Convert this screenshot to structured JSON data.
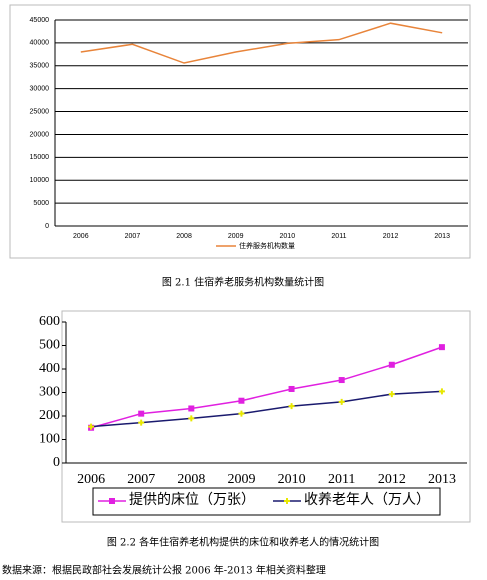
{
  "chart_data": [
    {
      "type": "line",
      "categories": [
        "2006",
        "2007",
        "2008",
        "2009",
        "2010",
        "2011",
        "2012",
        "2013"
      ],
      "series": [
        {
          "name": "住养服务机构数量",
          "color": "#e8843a",
          "values": [
            38000,
            39700,
            35600,
            38000,
            39900,
            40700,
            44300,
            42200
          ]
        }
      ],
      "ylim": [
        0,
        45000
      ],
      "yticks": [
        0,
        5000,
        10000,
        15000,
        20000,
        25000,
        30000,
        35000,
        40000,
        45000
      ],
      "grid": true,
      "legend": "bottom"
    },
    {
      "type": "line",
      "categories": [
        "2006",
        "2007",
        "2008",
        "2009",
        "2010",
        "2011",
        "2012",
        "2013"
      ],
      "series": [
        {
          "name": "提供的床位（万张）",
          "color": "#e020e0",
          "marker_color": "#e020e0",
          "marker": "square",
          "values": [
            150,
            210,
            232,
            265,
            315,
            353,
            418,
            493
          ]
        },
        {
          "name": "收养老年人（万人）",
          "color": "#1a1a6e",
          "marker_color": "#e8e800",
          "marker": "cross",
          "values": [
            155,
            172,
            190,
            210,
            242,
            260,
            293,
            305
          ]
        }
      ],
      "ylim": [
        0,
        600
      ],
      "yticks": [
        0,
        100,
        200,
        300,
        400,
        500,
        600
      ],
      "grid": false,
      "legend": "bottom"
    }
  ],
  "captions": [
    "图 2.1  住宿养老服务机构数量统计图",
    "图 2.2  各年住宿养老机构提供的床位和收养老人的情况统计图"
  ],
  "source": "数据来源：根据民政部社会发展统计公报 2006 年-2013 年相关资料整理"
}
